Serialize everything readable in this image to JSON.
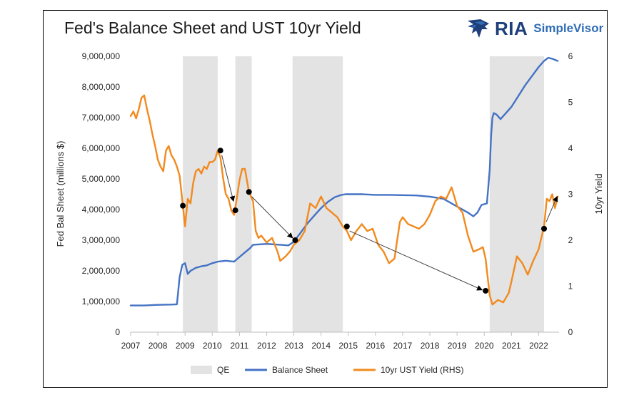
{
  "logo": {
    "brand": "RIA",
    "product": "SimpleVisor",
    "icon": "eagle-icon"
  },
  "colors": {
    "balance": "#4472c4",
    "yield": "#f28a1e",
    "qe": "#e3e3e3",
    "marker": "#000000",
    "arrow": "#404040",
    "logo_dark": "#1f3f7a",
    "logo_light": "#2f6db5"
  },
  "chart_data": {
    "type": "line",
    "title": "Fed's Balance Sheet and UST 10yr Yield",
    "ylabel": "Fed Bal Sheet (millions $)",
    "y2label": "10yr Yield",
    "ylim": [
      0,
      9000000
    ],
    "y2lim": [
      0,
      6
    ],
    "xlim": [
      2007,
      2022.75
    ],
    "x_ticks": [
      "2007",
      "2008",
      "2009",
      "2010",
      "2011",
      "2012",
      "2013",
      "2014",
      "2015",
      "2016",
      "2017",
      "2018",
      "2019",
      "2020",
      "2021",
      "2022"
    ],
    "y_ticks": [
      "0",
      "1,000,000",
      "2,000,000",
      "3,000,000",
      "4,000,000",
      "5,000,000",
      "6,000,000",
      "7,000,000",
      "8,000,000",
      "9,000,000"
    ],
    "y2_ticks": [
      "0",
      "1",
      "2",
      "3",
      "4",
      "5",
      "6"
    ],
    "grid": false,
    "legend_position": "bottom",
    "legend": [
      "QE",
      "Balance Sheet",
      "10yr UST Yield (RHS)"
    ],
    "qe_periods": [
      [
        2008.92,
        2010.2
      ],
      [
        2010.85,
        2011.45
      ],
      [
        2012.95,
        2014.8
      ],
      [
        2020.2,
        2022.2
      ]
    ],
    "series": [
      {
        "name": "Balance Sheet",
        "axis": "left",
        "x": [
          2007.0,
          2007.5,
          2008.0,
          2008.5,
          2008.7,
          2008.8,
          2008.9,
          2009.0,
          2009.1,
          2009.2,
          2009.4,
          2009.6,
          2009.8,
          2010.0,
          2010.2,
          2010.5,
          2010.8,
          2011.0,
          2011.2,
          2011.4,
          2011.5,
          2012.0,
          2012.5,
          2012.8,
          2013.0,
          2013.25,
          2013.5,
          2013.75,
          2014.0,
          2014.25,
          2014.5,
          2014.75,
          2014.9,
          2015.5,
          2016.0,
          2016.5,
          2017.0,
          2017.5,
          2018.0,
          2018.5,
          2019.0,
          2019.4,
          2019.6,
          2019.75,
          2019.9,
          2020.1,
          2020.2,
          2020.25,
          2020.3,
          2020.35,
          2020.45,
          2020.6,
          2020.75,
          2021.0,
          2021.25,
          2021.5,
          2021.75,
          2022.0,
          2022.2,
          2022.35,
          2022.5,
          2022.7
        ],
        "values": [
          870000,
          870000,
          890000,
          900000,
          910000,
          1800000,
          2200000,
          2250000,
          1900000,
          2000000,
          2100000,
          2150000,
          2180000,
          2250000,
          2300000,
          2330000,
          2300000,
          2450000,
          2600000,
          2750000,
          2850000,
          2880000,
          2850000,
          2830000,
          2950000,
          3250000,
          3550000,
          3800000,
          4050000,
          4250000,
          4400000,
          4480000,
          4500000,
          4500000,
          4480000,
          4480000,
          4470000,
          4460000,
          4420000,
          4350000,
          4100000,
          3900000,
          3780000,
          3900000,
          4150000,
          4200000,
          5300000,
          6400000,
          7000000,
          7150000,
          7100000,
          6950000,
          7100000,
          7350000,
          7700000,
          8050000,
          8350000,
          8650000,
          8850000,
          8950000,
          8920000,
          8850000
        ]
      },
      {
        "name": "10yr UST Yield (RHS)",
        "axis": "right",
        "x": [
          2007.0,
          2007.1,
          2007.2,
          2007.3,
          2007.4,
          2007.5,
          2007.6,
          2007.7,
          2007.8,
          2007.9,
          2008.0,
          2008.1,
          2008.2,
          2008.3,
          2008.4,
          2008.5,
          2008.6,
          2008.7,
          2008.8,
          2008.92,
          2009.0,
          2009.1,
          2009.2,
          2009.3,
          2009.4,
          2009.5,
          2009.6,
          2009.7,
          2009.8,
          2009.9,
          2010.0,
          2010.1,
          2010.2,
          2010.3,
          2010.4,
          2010.5,
          2010.6,
          2010.7,
          2010.8,
          2010.9,
          2011.0,
          2011.1,
          2011.2,
          2011.35,
          2011.5,
          2011.6,
          2011.7,
          2011.8,
          2012.0,
          2012.2,
          2012.4,
          2012.5,
          2012.7,
          2012.85,
          2013.0,
          2013.2,
          2013.4,
          2013.6,
          2013.8,
          2014.0,
          2014.2,
          2014.4,
          2014.6,
          2014.8,
          2014.95,
          2015.1,
          2015.3,
          2015.5,
          2015.7,
          2015.9,
          2016.1,
          2016.3,
          2016.5,
          2016.7,
          2016.9,
          2017.0,
          2017.2,
          2017.4,
          2017.6,
          2017.8,
          2018.0,
          2018.2,
          2018.4,
          2018.6,
          2018.8,
          2019.0,
          2019.2,
          2019.4,
          2019.6,
          2019.8,
          2019.95,
          2020.05,
          2020.2,
          2020.3,
          2020.5,
          2020.7,
          2020.9,
          2021.0,
          2021.2,
          2021.4,
          2021.6,
          2021.8,
          2022.0,
          2022.2,
          2022.3,
          2022.4,
          2022.5,
          2022.6,
          2022.7
        ],
        "values": [
          4.7,
          4.8,
          4.65,
          4.85,
          5.1,
          5.15,
          4.85,
          4.6,
          4.3,
          4.05,
          3.75,
          3.6,
          3.5,
          3.95,
          4.05,
          3.85,
          3.75,
          3.6,
          3.4,
          2.75,
          2.3,
          2.9,
          2.8,
          3.25,
          3.5,
          3.55,
          3.45,
          3.6,
          3.55,
          3.7,
          3.7,
          3.75,
          3.95,
          3.8,
          3.35,
          3.0,
          2.9,
          2.65,
          2.55,
          2.9,
          3.3,
          3.55,
          3.55,
          3.05,
          2.85,
          2.2,
          2.05,
          2.1,
          1.95,
          2.05,
          1.75,
          1.55,
          1.65,
          1.75,
          1.9,
          2.0,
          2.2,
          2.8,
          2.7,
          2.95,
          2.7,
          2.6,
          2.5,
          2.3,
          2.2,
          2.0,
          2.2,
          2.35,
          2.2,
          2.25,
          1.9,
          1.75,
          1.5,
          1.6,
          2.4,
          2.5,
          2.35,
          2.3,
          2.25,
          2.35,
          2.55,
          2.85,
          2.95,
          2.9,
          3.15,
          2.75,
          2.6,
          2.1,
          1.75,
          1.8,
          1.85,
          1.6,
          0.8,
          0.6,
          0.7,
          0.65,
          0.85,
          1.1,
          1.65,
          1.5,
          1.25,
          1.55,
          1.8,
          2.3,
          2.9,
          2.85,
          3.0,
          2.7,
          2.95
        ]
      }
    ],
    "markers": [
      {
        "x": 2008.92,
        "y": 2.75
      },
      {
        "x": 2010.3,
        "y": 3.95
      },
      {
        "x": 2010.85,
        "y": 2.65
      },
      {
        "x": 2011.35,
        "y": 3.05
      },
      {
        "x": 2013.05,
        "y": 2.0
      },
      {
        "x": 2014.95,
        "y": 2.3
      },
      {
        "x": 2020.05,
        "y": 0.9
      },
      {
        "x": 2022.2,
        "y": 2.25
      }
    ],
    "arrows": [
      {
        "from": [
          2010.35,
          3.85
        ],
        "to": [
          2010.78,
          2.85
        ]
      },
      {
        "from": [
          2011.45,
          2.95
        ],
        "to": [
          2012.95,
          2.05
        ]
      },
      {
        "from": [
          2015.05,
          2.2
        ],
        "to": [
          2019.92,
          0.92
        ]
      },
      {
        "from": [
          2022.28,
          2.4
        ],
        "to": [
          2022.68,
          2.95
        ]
      }
    ]
  }
}
